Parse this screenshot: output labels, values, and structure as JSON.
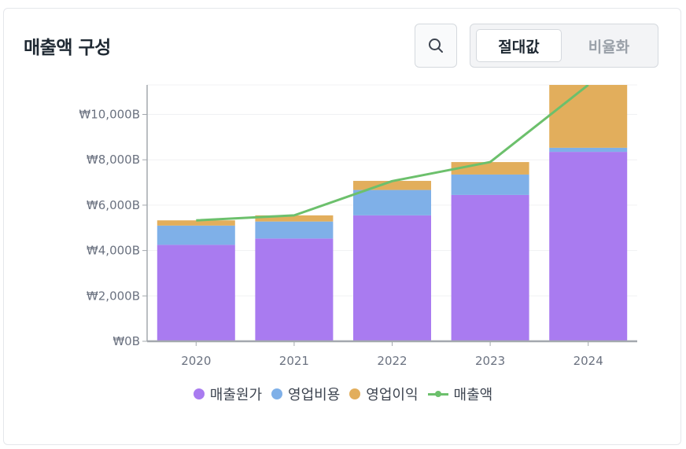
{
  "header": {
    "title": "매출액 구성",
    "toggle_options": [
      "절대값",
      "비율화"
    ]
  },
  "colors": {
    "cost": "#a97bf0",
    "opex": "#7fb0e8",
    "profit": "#e2ae5c",
    "revenue": "#6cc06c",
    "axis": "#a3a8ae",
    "tick_text": "#6b7280"
  },
  "chart_data": {
    "type": "bar",
    "stacked": true,
    "title": "매출액 구성",
    "categories": [
      "2020",
      "2021",
      "2022",
      "2023",
      "2024"
    ],
    "series": [
      {
        "name": "매출원가",
        "type": "bar",
        "values": [
          4250,
          4530,
          5550,
          6450,
          8350
        ]
      },
      {
        "name": "영업비용",
        "type": "bar",
        "values": [
          850,
          750,
          1120,
          900,
          180
        ]
      },
      {
        "name": "영업이익",
        "type": "bar",
        "values": [
          230,
          270,
          400,
          550,
          2870
        ]
      },
      {
        "name": "매출액",
        "type": "line",
        "values": [
          5330,
          5550,
          7060,
          7900,
          11300
        ]
      }
    ],
    "y_tick_labels": [
      "₩0B",
      "₩2,000B",
      "₩4,000B",
      "₩6,000B",
      "₩8,000B",
      "₩10,000B"
    ],
    "y_tick_values": [
      0,
      2000,
      4000,
      6000,
      8000,
      10000
    ],
    "ylim": [
      0,
      11300
    ],
    "xlabel": "",
    "ylabel": "",
    "legend_position": "bottom"
  }
}
